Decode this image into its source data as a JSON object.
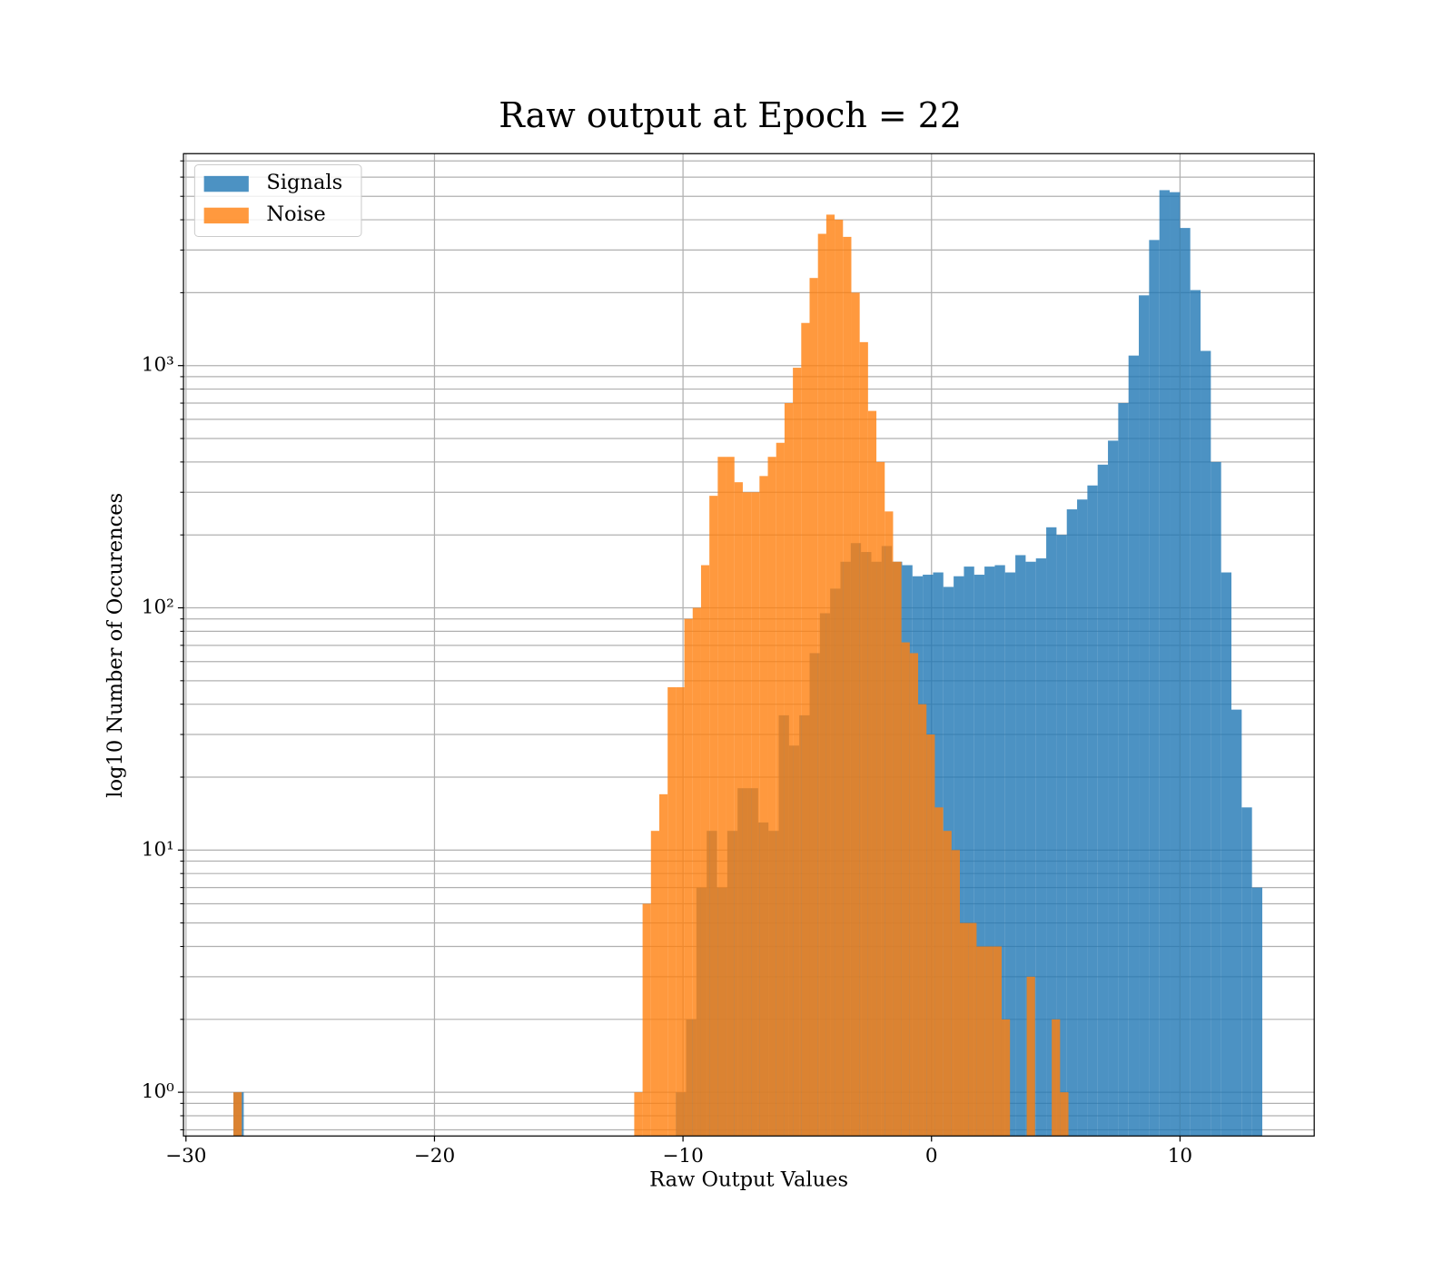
{
  "chart_data": {
    "type": "histogram",
    "title": "Raw output at Epoch = 22",
    "xlabel": "Raw Output Values",
    "ylabel": "log10 Number of Occurences",
    "log_y": true,
    "grid": true,
    "legend": "upper left",
    "xlim": [
      -30.1,
      15.4
    ],
    "ylim": [
      0.66,
      7500
    ],
    "xticks": [
      {
        "value": -30,
        "label": "−30"
      },
      {
        "value": -20,
        "label": "−20"
      },
      {
        "value": -10,
        "label": "−10"
      },
      0,
      10
    ],
    "yticks": [
      {
        "value": 1,
        "label": "10⁰"
      },
      {
        "value": 10,
        "label": "10¹"
      },
      {
        "value": 100,
        "label": "10²"
      },
      {
        "value": 1000,
        "label": "10³"
      }
    ],
    "yminor_ticks": [
      0.7,
      0.8,
      0.9,
      2,
      3,
      4,
      5,
      6,
      7,
      8,
      9,
      20,
      30,
      40,
      50,
      60,
      70,
      80,
      90,
      200,
      300,
      400,
      500,
      600,
      700,
      800,
      900,
      2000,
      3000,
      4000,
      5000,
      6000,
      7000
    ],
    "series": [
      {
        "name": "Signals",
        "color": "#1f77b4",
        "opacity": 0.8,
        "bins": [
          -28.09,
          -27.676,
          -27.262,
          -26.848,
          -26.434,
          -26.02,
          -25.606,
          -25.192,
          -24.778,
          -24.364,
          -23.95,
          -23.536,
          -23.122,
          -22.708,
          -22.294,
          -21.88,
          -21.466,
          -21.052,
          -20.638,
          -20.224,
          -19.81,
          -19.396,
          -18.982,
          -18.568,
          -18.154,
          -17.74,
          -17.326,
          -16.912,
          -16.498,
          -16.084,
          -15.67,
          -15.256,
          -14.842,
          -14.428,
          -14.014,
          -13.6,
          -13.186,
          -12.772,
          -12.358,
          -11.944,
          -11.53,
          -11.116,
          -10.702,
          -10.288,
          -9.874,
          -9.46,
          -9.046,
          -8.632,
          -8.218,
          -7.804,
          -7.39,
          -6.976,
          -6.562,
          -6.148,
          -5.734,
          -5.32,
          -4.906,
          -4.492,
          -4.078,
          -3.664,
          -3.25,
          -2.836,
          -2.422,
          -2.008,
          -1.594,
          -1.18,
          -0.766,
          -0.352,
          0.062,
          0.476,
          0.89,
          1.304,
          1.718,
          2.132,
          2.546,
          2.96,
          3.374,
          3.788,
          4.202,
          4.616,
          5.03,
          5.444,
          5.858,
          6.272,
          6.686,
          7.1,
          7.514,
          7.928,
          8.342,
          8.756,
          9.17,
          9.584,
          9.998,
          10.412,
          10.826,
          11.24,
          11.654,
          12.068,
          12.482,
          12.896,
          13.31
        ],
        "values": [
          1,
          0,
          0,
          0,
          0,
          0,
          0,
          0,
          0,
          0,
          0,
          0,
          0,
          0,
          0,
          0,
          0,
          0,
          0,
          0,
          0,
          0,
          0,
          0,
          0,
          0,
          0,
          0,
          0,
          0,
          0,
          0,
          0,
          0,
          0,
          0,
          0,
          0,
          0,
          0,
          0,
          0,
          0,
          1,
          2,
          7,
          12,
          7,
          12,
          18,
          18,
          13,
          12,
          36,
          27,
          36,
          65,
          95,
          120,
          155,
          185,
          170,
          155,
          180,
          155,
          150,
          135,
          137,
          140,
          122,
          135,
          148,
          137,
          148,
          150,
          140,
          165,
          155,
          160,
          215,
          200,
          255,
          280,
          320,
          390,
          490,
          700,
          1100,
          1950,
          3300,
          5300,
          5200,
          3700,
          2050,
          1150,
          400,
          140,
          38,
          15,
          7
        ]
      },
      {
        "name": "Noise",
        "color": "#ff7f0e",
        "opacity": 0.8,
        "bins": [
          -28.09,
          -27.754,
          -27.418,
          -27.082,
          -26.746,
          -26.41,
          -26.074,
          -25.738,
          -25.402,
          -25.066,
          -24.73,
          -24.394,
          -24.058,
          -23.722,
          -23.386,
          -23.05,
          -22.714,
          -22.378,
          -22.042,
          -21.706,
          -21.37,
          -21.034,
          -20.698,
          -20.362,
          -20.026,
          -19.69,
          -19.354,
          -19.018,
          -18.682,
          -18.346,
          -18.01,
          -17.674,
          -17.338,
          -17.002,
          -16.666,
          -16.33,
          -15.994,
          -15.658,
          -15.322,
          -14.986,
          -14.65,
          -14.314,
          -13.978,
          -13.642,
          -13.306,
          -12.97,
          -12.634,
          -12.298,
          -11.962,
          -11.626,
          -11.29,
          -10.954,
          -10.618,
          -10.282,
          -9.946,
          -9.61,
          -9.274,
          -8.938,
          -8.602,
          -8.266,
          -7.93,
          -7.594,
          -7.258,
          -6.922,
          -6.586,
          -6.25,
          -5.914,
          -5.578,
          -5.242,
          -4.906,
          -4.57,
          -4.234,
          -3.898,
          -3.562,
          -3.226,
          -2.89,
          -2.554,
          -2.218,
          -1.882,
          -1.546,
          -1.21,
          -0.874,
          -0.538,
          -0.202,
          0.134,
          0.47,
          0.806,
          1.142,
          1.478,
          1.814,
          2.15,
          2.486,
          2.822,
          3.158,
          3.494,
          3.83,
          4.166,
          4.502,
          4.838,
          5.174,
          5.51
        ],
        "values": [
          1,
          0,
          0,
          0,
          0,
          0,
          0,
          0,
          0,
          0,
          0,
          0,
          0,
          0,
          0,
          0,
          0,
          0,
          0,
          0,
          0,
          0,
          0,
          0,
          0,
          0,
          0,
          0,
          0,
          0,
          0,
          0,
          0,
          0,
          0,
          0,
          0,
          0,
          0,
          0,
          0,
          0,
          0,
          0,
          0,
          0,
          0,
          0,
          1,
          6,
          12,
          17,
          47,
          47,
          90,
          100,
          150,
          290,
          420,
          420,
          330,
          300,
          300,
          350,
          420,
          480,
          700,
          980,
          1500,
          2300,
          3500,
          4200,
          4000,
          3400,
          2000,
          1250,
          650,
          400,
          250,
          155,
          72,
          65,
          40,
          30,
          15,
          12,
          10,
          5,
          5,
          4,
          4,
          4,
          2,
          0,
          0,
          3,
          0,
          0,
          2,
          1
        ]
      }
    ]
  }
}
